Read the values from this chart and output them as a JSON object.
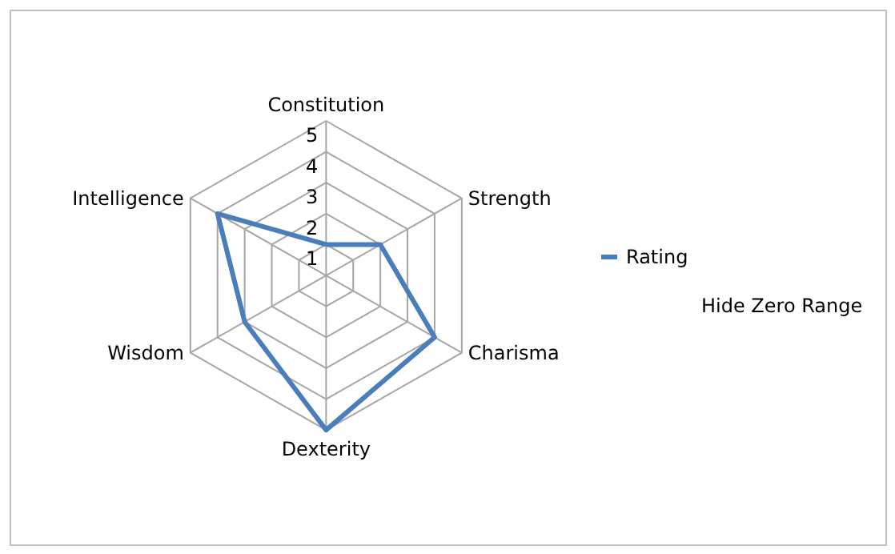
{
  "chart_data": {
    "type": "radar",
    "categories": [
      "Constitution",
      "Strength",
      "Charisma",
      "Dexterity",
      "Wisdom",
      "Intelligence"
    ],
    "series": [
      {
        "name": "Rating",
        "color": "#4a7ebb",
        "values": [
          1,
          2,
          4,
          5,
          3,
          4
        ]
      }
    ],
    "ylim": [
      0,
      5
    ],
    "yticks": [
      1,
      2,
      3,
      4,
      5
    ],
    "grid": true,
    "legend": "right",
    "marker": "none",
    "line_style": "solid",
    "annotations": [
      "Hide Zero Range"
    ]
  }
}
